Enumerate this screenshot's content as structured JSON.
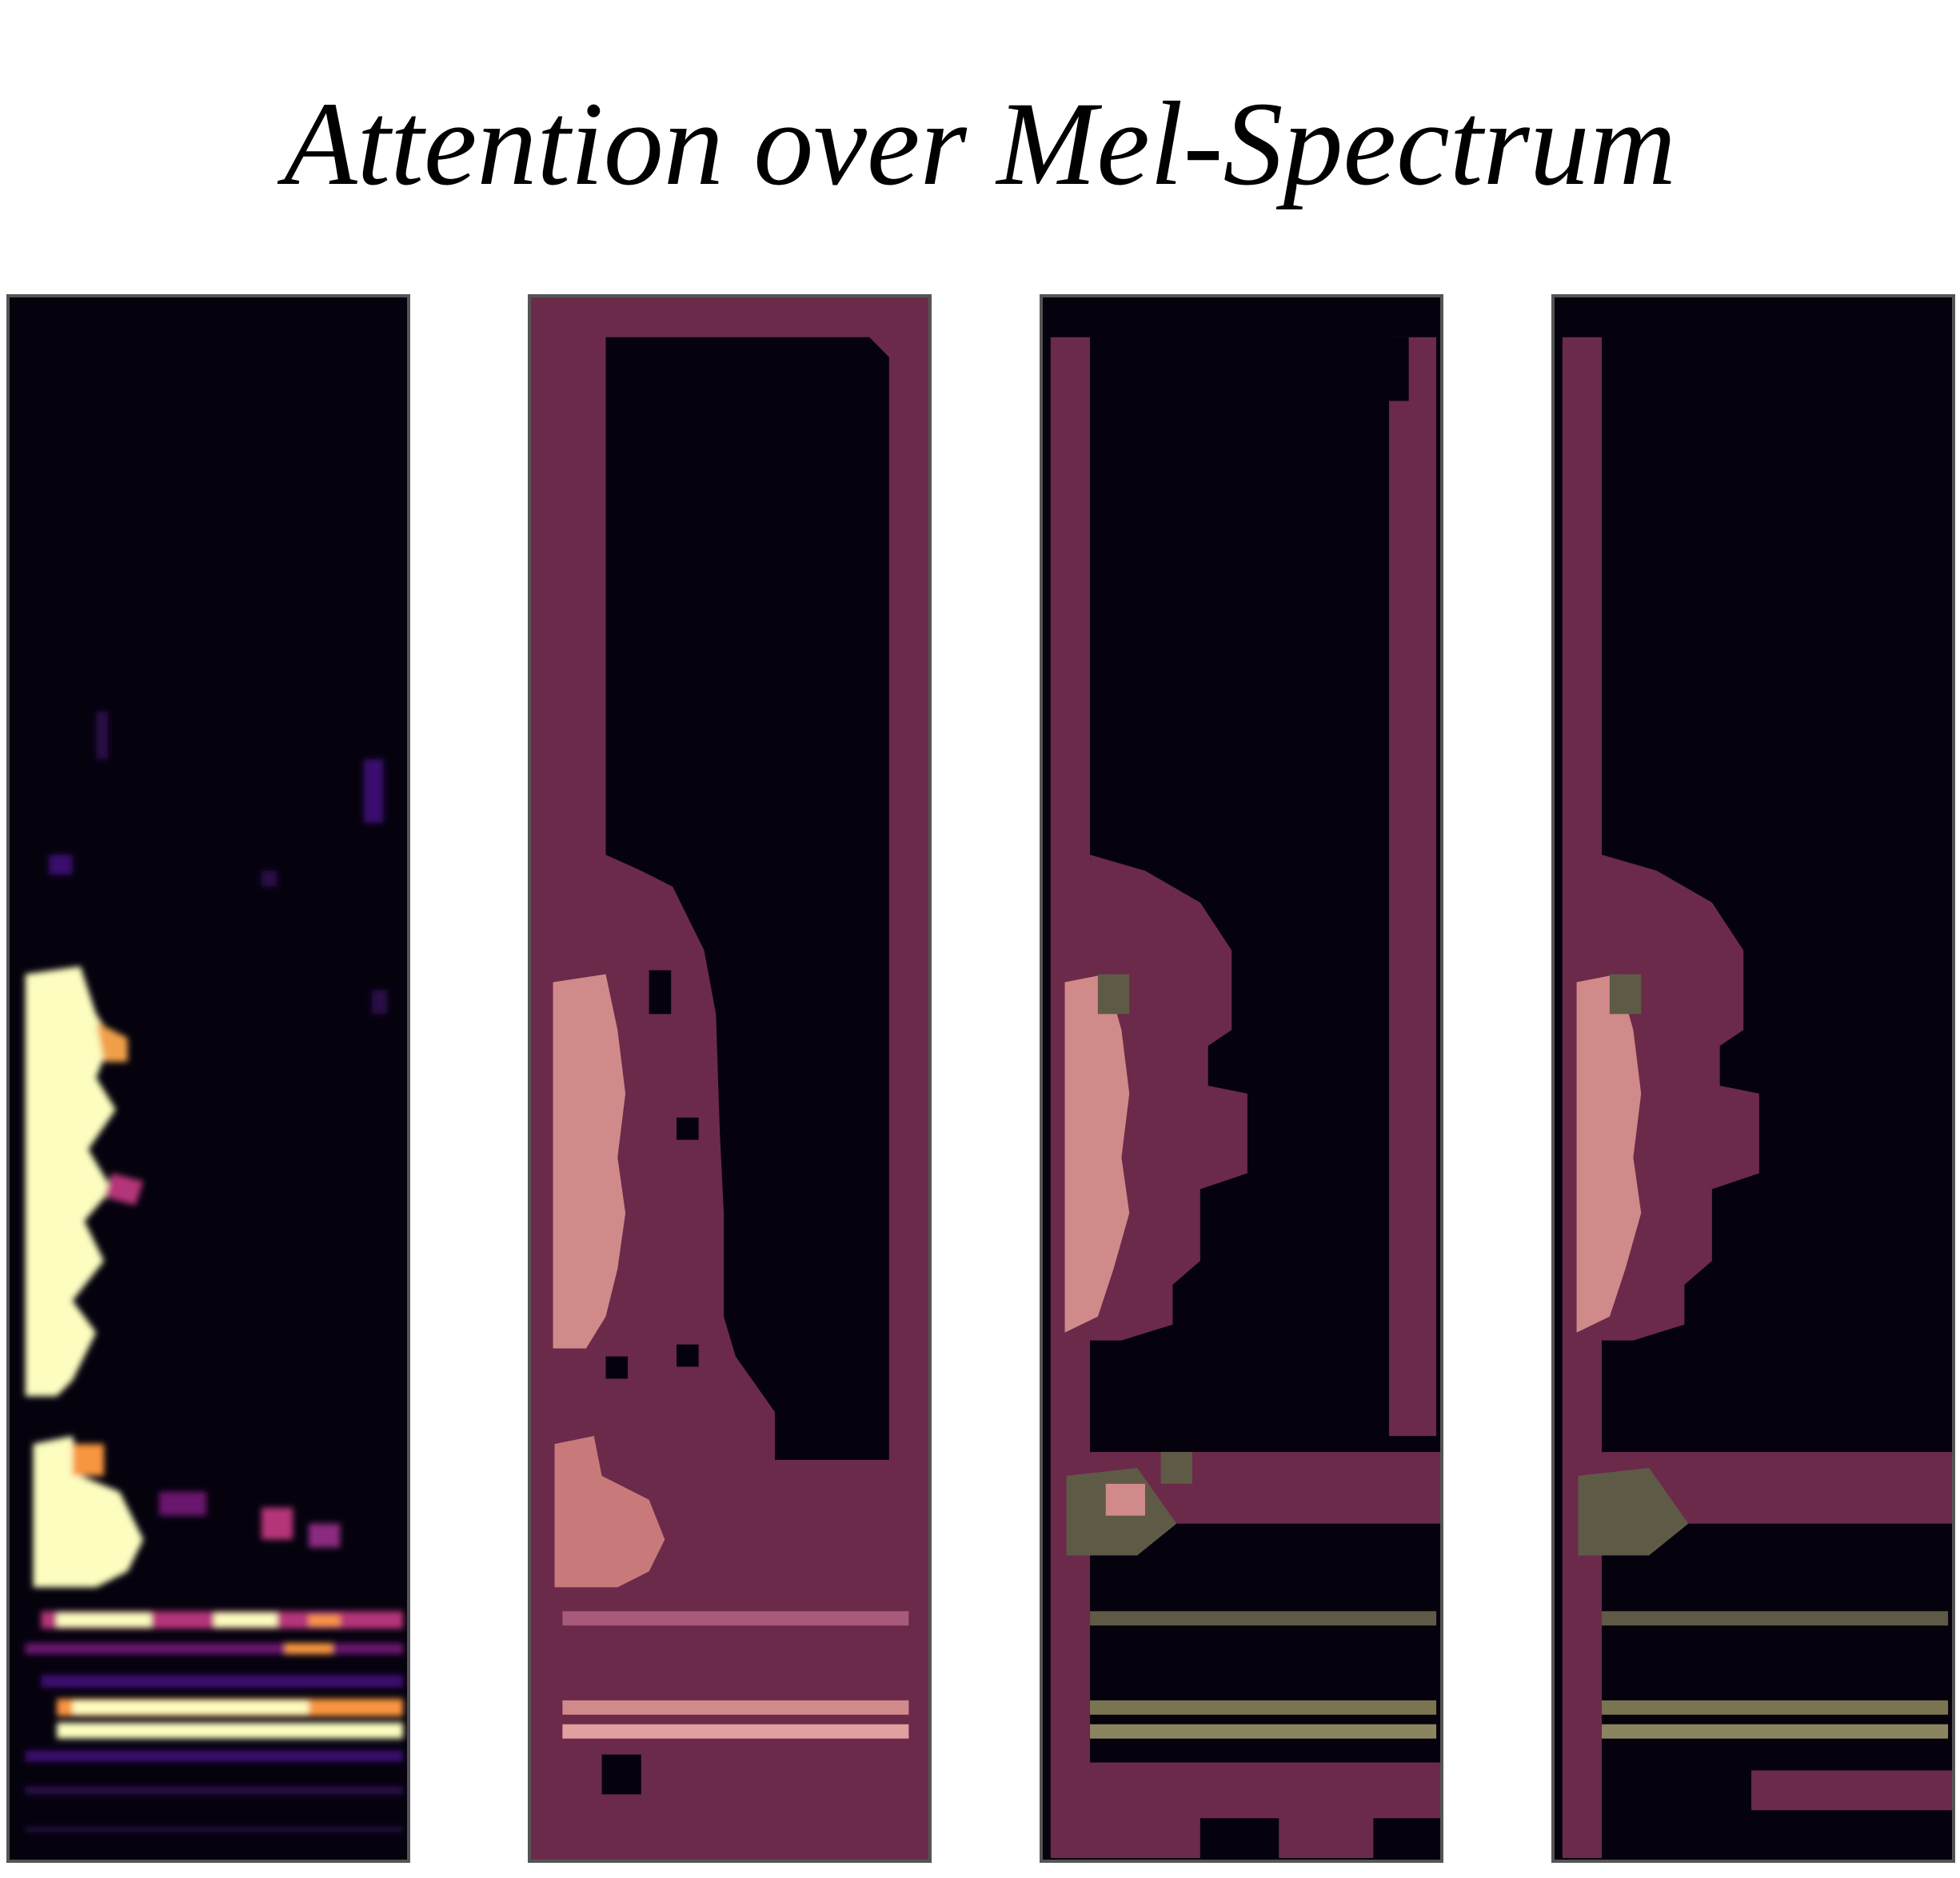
{
  "figure": {
    "title": "Attention over Mel-Spectrum"
  },
  "panels": [
    {
      "id": "mel-spectrum",
      "mask": "none"
    },
    {
      "id": "attention-mask-1",
      "mask": "mask-1"
    },
    {
      "id": "attention-mask-2",
      "mask": "mask-2"
    },
    {
      "id": "attention-mask-3",
      "mask": "mask-3"
    }
  ],
  "colors": {
    "background": "#05020e",
    "bright": "#fcfdbf",
    "mid": "#b5367a",
    "low": "#3b0f70",
    "mask-overlay": "#6b2a4a",
    "mask-highlight": "#d08a8a",
    "mask-alt": "#5f5a45"
  }
}
